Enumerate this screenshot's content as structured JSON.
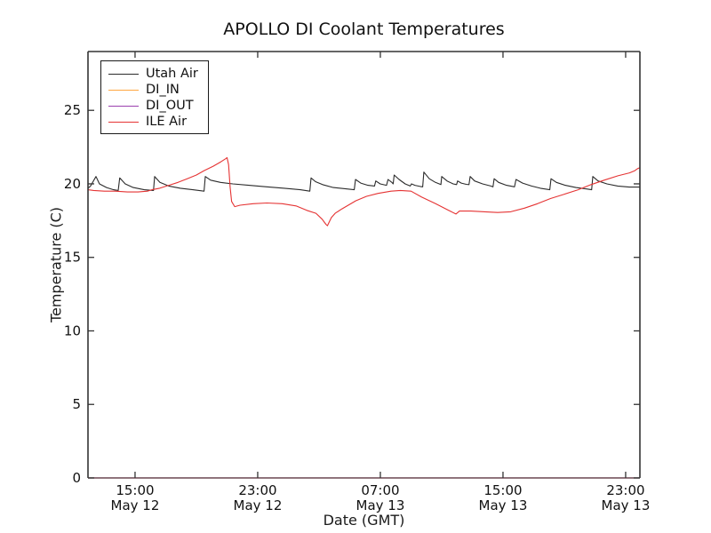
{
  "chart_data": {
    "type": "line",
    "title": "APOLLO DI Coolant Temperatures",
    "xlabel": "Date (GMT)",
    "ylabel": "Temperature (C)",
    "x_unit": "hours since 2000-05-12 00:00 GMT",
    "xlim": [
      11.93,
      47.93
    ],
    "ylim": [
      0,
      29
    ],
    "grid": false,
    "legend_position": "upper left",
    "yticks": [
      0,
      5,
      10,
      15,
      20,
      25
    ],
    "xticks": [
      {
        "value": 15,
        "line1": "15:00",
        "line2": "May 12"
      },
      {
        "value": 23,
        "line1": "23:00",
        "line2": "May 12"
      },
      {
        "value": 31,
        "line1": "07:00",
        "line2": "May 13"
      },
      {
        "value": 39,
        "line1": "15:00",
        "line2": "May 13"
      },
      {
        "value": 47,
        "line1": "23:00",
        "line2": "May 13"
      }
    ],
    "series": [
      {
        "name": "Utah Air",
        "color": "#2b2b2b",
        "opacity": 1,
        "points": [
          [
            11.93,
            19.7
          ],
          [
            12.1,
            19.85
          ],
          [
            12.45,
            20.5
          ],
          [
            12.68,
            20.0
          ],
          [
            13.14,
            19.75
          ],
          [
            13.6,
            19.6
          ],
          [
            13.9,
            19.55
          ],
          [
            14.0,
            20.4
          ],
          [
            14.36,
            20.0
          ],
          [
            14.88,
            19.75
          ],
          [
            15.6,
            19.6
          ],
          [
            16.2,
            19.55
          ],
          [
            16.28,
            20.5
          ],
          [
            16.62,
            20.1
          ],
          [
            17.2,
            19.85
          ],
          [
            17.96,
            19.7
          ],
          [
            18.77,
            19.6
          ],
          [
            19.5,
            19.5
          ],
          [
            19.58,
            20.5
          ],
          [
            19.93,
            20.25
          ],
          [
            20.57,
            20.1
          ],
          [
            21.38,
            20.0
          ],
          [
            22.42,
            19.9
          ],
          [
            23.58,
            19.8
          ],
          [
            24.74,
            19.7
          ],
          [
            25.78,
            19.6
          ],
          [
            26.4,
            19.5
          ],
          [
            26.48,
            20.4
          ],
          [
            26.77,
            20.15
          ],
          [
            27.23,
            19.95
          ],
          [
            27.93,
            19.75
          ],
          [
            29.3,
            19.6
          ],
          [
            29.38,
            20.3
          ],
          [
            29.72,
            20.05
          ],
          [
            30.19,
            19.9
          ],
          [
            30.62,
            19.85
          ],
          [
            30.7,
            20.2
          ],
          [
            30.99,
            20.0
          ],
          [
            31.4,
            19.9
          ],
          [
            31.5,
            20.3
          ],
          [
            31.75,
            20.1
          ],
          [
            31.84,
            20.0
          ],
          [
            31.9,
            20.6
          ],
          [
            32.22,
            20.3
          ],
          [
            32.62,
            20.0
          ],
          [
            32.95,
            19.85
          ],
          [
            33.03,
            20.0
          ],
          [
            33.26,
            19.9
          ],
          [
            33.6,
            19.82
          ],
          [
            33.76,
            19.8
          ],
          [
            33.84,
            20.8
          ],
          [
            34.19,
            20.35
          ],
          [
            34.59,
            20.1
          ],
          [
            34.95,
            19.95
          ],
          [
            35.0,
            20.5
          ],
          [
            35.35,
            20.2
          ],
          [
            35.75,
            20.0
          ],
          [
            35.97,
            19.95
          ],
          [
            36.04,
            20.2
          ],
          [
            36.28,
            20.05
          ],
          [
            36.6,
            19.97
          ],
          [
            36.78,
            19.95
          ],
          [
            36.86,
            20.5
          ],
          [
            37.15,
            20.2
          ],
          [
            37.67,
            20.0
          ],
          [
            38.2,
            19.85
          ],
          [
            38.35,
            19.8
          ],
          [
            38.42,
            20.35
          ],
          [
            38.71,
            20.1
          ],
          [
            39.23,
            19.9
          ],
          [
            39.75,
            19.8
          ],
          [
            39.85,
            20.3
          ],
          [
            40.28,
            20.05
          ],
          [
            40.86,
            19.85
          ],
          [
            41.44,
            19.7
          ],
          [
            42.05,
            19.6
          ],
          [
            42.13,
            20.35
          ],
          [
            42.48,
            20.1
          ],
          [
            43.06,
            19.9
          ],
          [
            43.75,
            19.75
          ],
          [
            44.5,
            19.65
          ],
          [
            44.78,
            19.6
          ],
          [
            44.86,
            20.5
          ],
          [
            45.2,
            20.2
          ],
          [
            45.78,
            20.0
          ],
          [
            46.48,
            19.85
          ],
          [
            47.23,
            19.78
          ],
          [
            47.93,
            19.78
          ]
        ]
      },
      {
        "name": "DI_IN",
        "color": "#ffa640",
        "opacity": 0.4,
        "points": [
          [
            11.93,
            0
          ],
          [
            47.93,
            0
          ]
        ]
      },
      {
        "name": "DI_OUT",
        "color": "#9a3fae",
        "opacity": 0.4,
        "points": [
          [
            11.93,
            0
          ],
          [
            47.93,
            0
          ]
        ]
      },
      {
        "name": "ILE Air",
        "color": "#e53333",
        "opacity": 1,
        "points": [
          [
            11.93,
            19.6
          ],
          [
            12.3,
            19.55
          ],
          [
            13.0,
            19.5
          ],
          [
            13.7,
            19.5
          ],
          [
            14.5,
            19.45
          ],
          [
            15.2,
            19.45
          ],
          [
            15.8,
            19.5
          ],
          [
            16.1,
            19.6
          ],
          [
            16.6,
            19.7
          ],
          [
            17.2,
            19.9
          ],
          [
            17.8,
            20.1
          ],
          [
            18.4,
            20.35
          ],
          [
            19.0,
            20.6
          ],
          [
            19.5,
            20.9
          ],
          [
            20.1,
            21.2
          ],
          [
            20.6,
            21.5
          ],
          [
            20.9,
            21.7
          ],
          [
            21.0,
            21.78
          ],
          [
            21.1,
            21.3
          ],
          [
            21.2,
            19.8
          ],
          [
            21.3,
            18.8
          ],
          [
            21.5,
            18.45
          ],
          [
            21.85,
            18.55
          ],
          [
            22.7,
            18.65
          ],
          [
            23.6,
            18.7
          ],
          [
            24.6,
            18.65
          ],
          [
            25.5,
            18.5
          ],
          [
            26.2,
            18.2
          ],
          [
            26.8,
            18.0
          ],
          [
            27.2,
            17.6
          ],
          [
            27.45,
            17.25
          ],
          [
            27.55,
            17.15
          ],
          [
            27.8,
            17.7
          ],
          [
            28.05,
            18.0
          ],
          [
            28.5,
            18.3
          ],
          [
            29.4,
            18.85
          ],
          [
            30.1,
            19.15
          ],
          [
            30.85,
            19.35
          ],
          [
            31.7,
            19.5
          ],
          [
            32.3,
            19.55
          ],
          [
            33.0,
            19.5
          ],
          [
            33.7,
            19.1
          ],
          [
            34.6,
            18.65
          ],
          [
            35.45,
            18.2
          ],
          [
            35.93,
            17.95
          ],
          [
            36.16,
            18.15
          ],
          [
            36.9,
            18.15
          ],
          [
            37.8,
            18.1
          ],
          [
            38.65,
            18.05
          ],
          [
            39.5,
            18.1
          ],
          [
            40.4,
            18.35
          ],
          [
            41.25,
            18.65
          ],
          [
            42.1,
            19.0
          ],
          [
            43.0,
            19.3
          ],
          [
            43.9,
            19.6
          ],
          [
            44.75,
            19.95
          ],
          [
            45.6,
            20.25
          ],
          [
            46.5,
            20.55
          ],
          [
            47.25,
            20.75
          ],
          [
            47.6,
            20.9
          ],
          [
            47.8,
            21.05
          ],
          [
            47.93,
            21.1
          ]
        ]
      }
    ]
  }
}
